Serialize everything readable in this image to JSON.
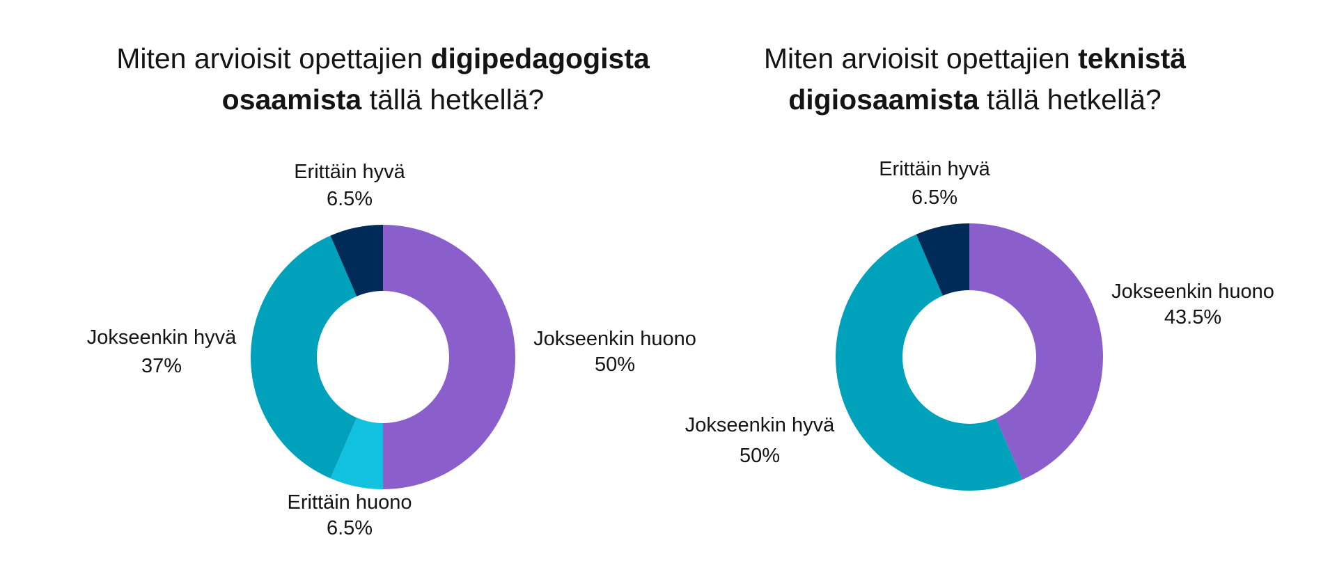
{
  "chart_data": [
    {
      "type": "pie",
      "title": {
        "line1_prefix": "Miten arvioisit opettajien ",
        "line1_bold": "digipedagogista",
        "line2_bold": "osaamista",
        "line2_suffix": " tällä hetkellä?"
      },
      "slices": [
        {
          "name": "Jokseenkin huono",
          "value": 50,
          "label": "50%",
          "color": "#8a5ecb"
        },
        {
          "name": "Erittäin huono",
          "value": 6.5,
          "label": "6.5%",
          "color": "#12c0e0"
        },
        {
          "name": "Jokseenkin hyvä",
          "value": 37,
          "label": "37%",
          "color": "#00a1bb"
        },
        {
          "name": "Erittäin hyvä",
          "value": 6.5,
          "label": "6.5%",
          "color": "#002a58"
        }
      ]
    },
    {
      "type": "pie",
      "title": {
        "line1_prefix": "Miten arvioisit opettajien ",
        "line1_bold": "teknistä",
        "line2_bold": "digiosaamista",
        "line2_suffix": " tällä hetkellä?"
      },
      "slices": [
        {
          "name": "Jokseenkin huono",
          "value": 43.5,
          "label": "43.5%",
          "color": "#8a5ecb"
        },
        {
          "name": "Jokseenkin hyvä",
          "value": 50,
          "label": "50%",
          "color": "#00a1bb"
        },
        {
          "name": "Erittäin hyvä",
          "value": 6.5,
          "label": "6.5%",
          "color": "#002a58"
        }
      ]
    }
  ]
}
